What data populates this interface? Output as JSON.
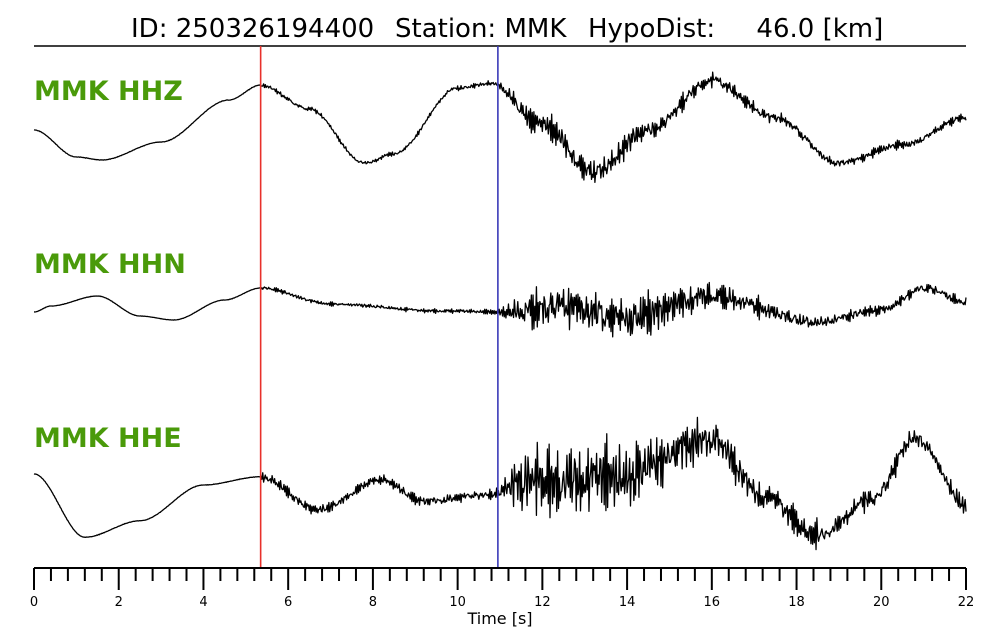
{
  "header": {
    "event_id_text": "ID: 250326194400",
    "station_text": "Station: MMK",
    "hypodist_text": "HypoDist:     46.0 [km]"
  },
  "chart_data": {
    "type": "line",
    "title": "ID: 250326194400   Station: MMK   HypoDist:     46.0 [km]",
    "xlabel": "Time [s]",
    "ylabel": "",
    "xlim": [
      0,
      22
    ],
    "x_ticks": [
      0,
      2,
      4,
      6,
      8,
      10,
      12,
      14,
      16,
      18,
      20,
      22
    ],
    "x_tick_labels": [
      "0",
      "2",
      "4",
      "6",
      "8",
      "10",
      "12",
      "14",
      "16",
      "18",
      "20",
      "22"
    ],
    "minor_tick_step": 0.4,
    "grid": false,
    "label_color": "#4a9a0a",
    "trace_color": "#000000",
    "picks": [
      {
        "phase": "P",
        "time": 5.35,
        "color": "#e8302a"
      },
      {
        "phase": "S",
        "time": 10.95,
        "color": "#3a3ab8"
      }
    ],
    "series": [
      {
        "name": "MMK HHZ",
        "seed": 11,
        "onset_amp": [
          0.06,
          0.35
        ],
        "lowfreq": [
          [
            0,
            0.0
          ],
          [
            1.0,
            0.45
          ],
          [
            1.6,
            0.5
          ],
          [
            3.0,
            0.2
          ],
          [
            4.6,
            -0.5
          ],
          [
            5.35,
            -0.75
          ],
          [
            6.5,
            -0.35
          ],
          [
            7.8,
            0.55
          ],
          [
            8.5,
            0.4
          ],
          [
            10.0,
            -0.7
          ],
          [
            10.8,
            -0.78
          ],
          [
            12.0,
            -0.1
          ],
          [
            13.2,
            0.7
          ],
          [
            14.5,
            0.0
          ],
          [
            16.0,
            -0.82
          ],
          [
            17.5,
            -0.2
          ],
          [
            19.0,
            0.55
          ],
          [
            20.5,
            0.25
          ],
          [
            22.0,
            -0.2
          ]
        ]
      },
      {
        "name": "MMK HHN",
        "seed": 23,
        "onset_amp": [
          0.08,
          0.9
        ],
        "lowfreq": [
          [
            0,
            0.05
          ],
          [
            0.4,
            -0.1
          ],
          [
            1.5,
            -0.35
          ],
          [
            2.5,
            0.15
          ],
          [
            3.3,
            0.25
          ],
          [
            4.5,
            -0.25
          ],
          [
            5.35,
            -0.55
          ],
          [
            7.0,
            -0.15
          ],
          [
            9.5,
            0.02
          ],
          [
            11.0,
            0.05
          ],
          [
            12.5,
            -0.1
          ],
          [
            14.0,
            0.2
          ],
          [
            16.0,
            -0.35
          ],
          [
            18.5,
            0.3
          ],
          [
            20.0,
            0.0
          ],
          [
            21.0,
            -0.55
          ],
          [
            22.0,
            -0.2
          ]
        ]
      },
      {
        "name": "MMK HHE",
        "seed": 37,
        "onset_amp": [
          0.15,
          1.05
        ],
        "lowfreq": [
          [
            0,
            -0.2
          ],
          [
            1.2,
            0.95
          ],
          [
            2.5,
            0.65
          ],
          [
            4.0,
            0.0
          ],
          [
            5.35,
            -0.15
          ],
          [
            6.7,
            0.45
          ],
          [
            8.2,
            -0.1
          ],
          [
            9.2,
            0.3
          ],
          [
            10.5,
            0.2
          ],
          [
            12.0,
            -0.1
          ],
          [
            14.0,
            -0.2
          ],
          [
            16.0,
            -0.85
          ],
          [
            17.2,
            0.2
          ],
          [
            18.5,
            0.9
          ],
          [
            19.8,
            0.25
          ],
          [
            20.8,
            -0.85
          ],
          [
            22.0,
            0.35
          ]
        ]
      }
    ]
  }
}
